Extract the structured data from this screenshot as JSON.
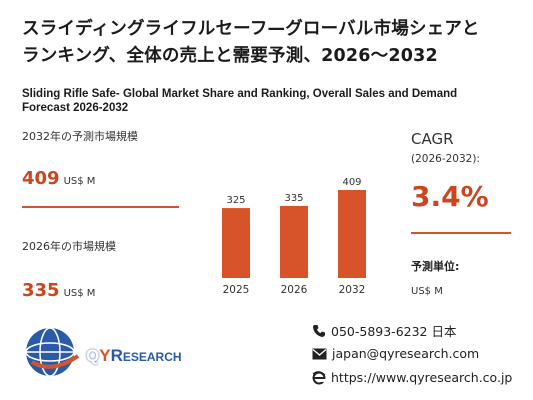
{
  "title_jp_line1": "スライディングライフルセーフ—グローバル市場シェアと",
  "title_jp_line2": "ランキング、全体の売上と需要予測、2026～2032",
  "title_en": "Sliding Rifle Safe- Global Market Share and Ranking, Overall Sales and Demand Forecast 2026-2032",
  "forecast_2032": {
    "label": "2032年の予測市場規模",
    "value": "409",
    "unit": "US$ M"
  },
  "market_2026": {
    "label": "2026年の市場規模",
    "value": "335",
    "unit": "US$ M"
  },
  "cagr": {
    "label": "CAGR",
    "period": "(2026-2032):",
    "value": "3.4%"
  },
  "unit_block": {
    "title": "予測単位:",
    "value": "US$ M"
  },
  "logo": {
    "q": "Q",
    "y": "Y",
    "r": "R",
    "rest": "ESEARCH"
  },
  "contact": {
    "phone": "050-5893-6232 日本",
    "email": "japan@qyresearch.com",
    "website": "https://www.qyresearch.co.jp"
  },
  "colors": {
    "accent": "#d7542a",
    "brand_blue": "#2a5aa8"
  },
  "chart_data": {
    "type": "bar",
    "categories": [
      "2025",
      "2026",
      "2032"
    ],
    "values": [
      325,
      335,
      409
    ],
    "title": "",
    "xlabel": "",
    "ylabel": "",
    "ylim": [
      0,
      409
    ],
    "grid": false,
    "data_labels": [
      "325",
      "335",
      "409"
    ]
  }
}
